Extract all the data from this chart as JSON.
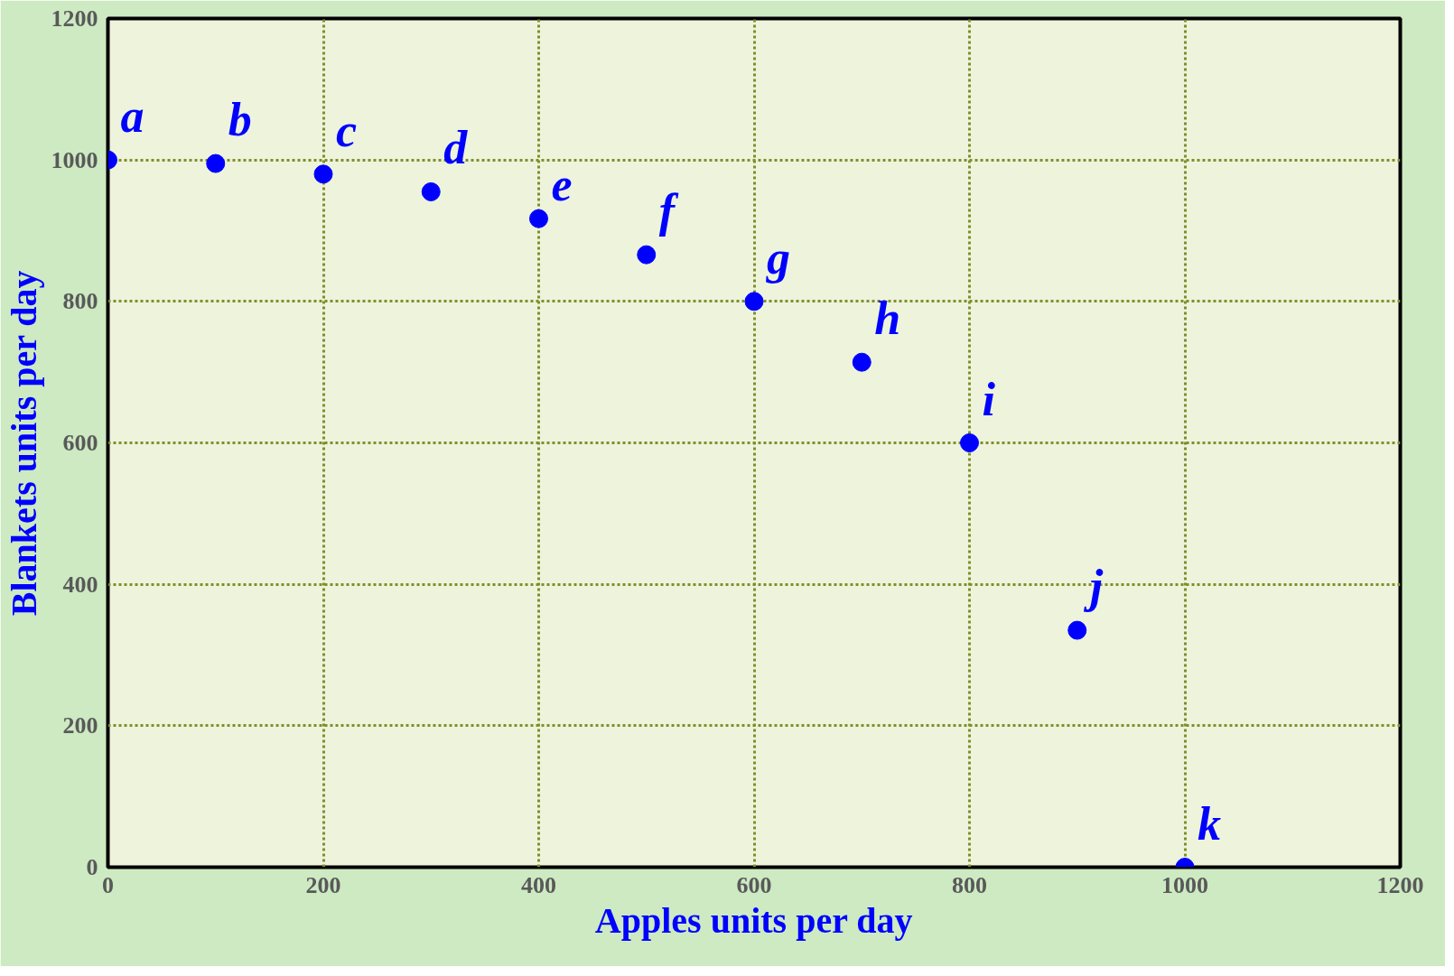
{
  "chart_data": {
    "type": "scatter",
    "xlabel": "Apples units per day",
    "ylabel": "Blankets units per day",
    "x": [
      0,
      100,
      200,
      300,
      400,
      500,
      600,
      700,
      800,
      900,
      1000
    ],
    "series": [
      {
        "color": "#0000ff",
        "values": [
          1000,
          995,
          980,
          955,
          917,
          866,
          800,
          714,
          600,
          335,
          0
        ]
      }
    ],
    "marker": "circle",
    "grid": true,
    "xlim": [
      0,
      1200
    ],
    "ylim": [
      0,
      1200
    ],
    "xticks": [
      0,
      200,
      400,
      600,
      800,
      1000,
      1200
    ],
    "yticks": [
      0,
      200,
      400,
      600,
      800,
      1000,
      1200
    ],
    "annotations": [
      {
        "text": "a",
        "x": 0,
        "y": 1000
      },
      {
        "text": "b",
        "x": 100,
        "y": 995
      },
      {
        "text": "c",
        "x": 200,
        "y": 980
      },
      {
        "text": "d",
        "x": 300,
        "y": 955
      },
      {
        "text": "e",
        "x": 400,
        "y": 917
      },
      {
        "text": "f",
        "x": 500,
        "y": 866
      },
      {
        "text": "g",
        "x": 600,
        "y": 800
      },
      {
        "text": "h",
        "x": 700,
        "y": 714
      },
      {
        "text": "i",
        "x": 800,
        "y": 600
      },
      {
        "text": "j",
        "x": 900,
        "y": 335
      },
      {
        "text": "k",
        "x": 1000,
        "y": 0
      }
    ]
  }
}
